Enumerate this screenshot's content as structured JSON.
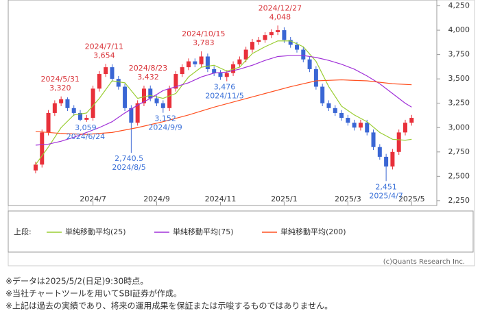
{
  "chart_data": {
    "type": "candlestick",
    "x": [
      5.2,
      5.4,
      5.6,
      5.8,
      6.0,
      6.2,
      6.4,
      6.6,
      6.8,
      7.0,
      7.2,
      7.4,
      7.6,
      7.8,
      8.0,
      8.2,
      8.4,
      8.6,
      8.8,
      9.0,
      9.2,
      9.4,
      9.6,
      9.8,
      10.0,
      10.2,
      10.4,
      10.6,
      10.8,
      11.0,
      11.2,
      11.4,
      11.6,
      11.8,
      12.0,
      12.2,
      12.4,
      12.6,
      12.8,
      13.0,
      13.2,
      13.4,
      13.6,
      13.8,
      14.0,
      14.2,
      14.4,
      14.6,
      14.8,
      15.0,
      15.2,
      15.4,
      15.6,
      15.8,
      16.0,
      16.2,
      16.4,
      16.6,
      16.8,
      17.0
    ],
    "open": [
      2560,
      2620,
      2950,
      3150,
      3250,
      3290,
      3200,
      3150,
      3080,
      3100,
      3400,
      3550,
      3620,
      3500,
      3420,
      3200,
      3050,
      3250,
      3400,
      3300,
      3250,
      3200,
      3400,
      3550,
      3620,
      3680,
      3650,
      3730,
      3600,
      3560,
      3520,
      3560,
      3650,
      3700,
      3800,
      3880,
      3900,
      3950,
      3980,
      4000,
      3900,
      3850,
      3800,
      3700,
      3600,
      3420,
      3250,
      3200,
      3150,
      3100,
      3050,
      3000,
      3050,
      2950,
      2800,
      2700,
      2600,
      2750,
      2950,
      3050
    ],
    "high": [
      2650,
      2980,
      3180,
      3280,
      3320,
      3310,
      3230,
      3180,
      3130,
      3430,
      3580,
      3654,
      3650,
      3530,
      3450,
      3230,
      3280,
      3430,
      3432,
      3330,
      3280,
      3430,
      3580,
      3650,
      3710,
      3710,
      3783,
      3760,
      3630,
      3590,
      3590,
      3680,
      3730,
      3830,
      3910,
      3930,
      3980,
      4010,
      4048,
      4030,
      3930,
      3880,
      3830,
      3730,
      3630,
      3450,
      3280,
      3230,
      3180,
      3130,
      3080,
      3080,
      3080,
      2980,
      2830,
      2730,
      2780,
      2980,
      3080,
      3130
    ],
    "low": [
      2530,
      2590,
      2920,
      3120,
      3220,
      3170,
      3120,
      3065,
      3059,
      3070,
      3370,
      3520,
      3470,
      3390,
      3170,
      2740.5,
      3020,
      3220,
      3270,
      3220,
      3152,
      3170,
      3370,
      3520,
      3590,
      3620,
      3620,
      3570,
      3530,
      3490,
      3476,
      3530,
      3620,
      3670,
      3770,
      3850,
      3870,
      3920,
      3950,
      3870,
      3820,
      3770,
      3670,
      3570,
      3390,
      3220,
      3170,
      3120,
      3070,
      3020,
      2970,
      2970,
      2920,
      2770,
      2670,
      2451,
      2570,
      2720,
      2920,
      3020
    ],
    "close": [
      2620,
      2950,
      3150,
      3250,
      3290,
      3200,
      3150,
      3080,
      3100,
      3400,
      3550,
      3620,
      3500,
      3420,
      3200,
      3050,
      3250,
      3400,
      3300,
      3250,
      3200,
      3400,
      3550,
      3620,
      3680,
      3650,
      3730,
      3600,
      3560,
      3520,
      3560,
      3650,
      3700,
      3800,
      3880,
      3900,
      3950,
      3980,
      4000,
      3900,
      3850,
      3800,
      3700,
      3600,
      3420,
      3250,
      3200,
      3150,
      3100,
      3050,
      3000,
      3050,
      2950,
      2800,
      2700,
      2600,
      2750,
      2950,
      3050,
      3100
    ],
    "up_color": "#e8303a",
    "down_color": "#3a66d4",
    "xlim": [
      4.34,
      17.79
    ],
    "xticks": [
      {
        "value": 7,
        "label": "2024/7"
      },
      {
        "value": 9,
        "label": "2024/9"
      },
      {
        "value": 11,
        "label": "2024/11"
      },
      {
        "value": 13,
        "label": "2025/1"
      },
      {
        "value": 15,
        "label": "2025/3"
      },
      {
        "value": 17,
        "label": "2025/5"
      }
    ],
    "ylim": [
      2200,
      4310
    ],
    "yticks": [
      {
        "value": 2250,
        "label": "2,250"
      },
      {
        "value": 2500,
        "label": "2,500"
      },
      {
        "value": 2750,
        "label": "2,750"
      },
      {
        "value": 3000,
        "label": "3,000"
      },
      {
        "value": 3250,
        "label": "3,250"
      },
      {
        "value": 3500,
        "label": "3,500"
      },
      {
        "value": 3750,
        "label": "3,750"
      },
      {
        "value": 4000,
        "label": "4,000"
      },
      {
        "value": 4250,
        "label": "4,250"
      }
    ],
    "legend_title": "上段:",
    "series": [
      {
        "name": "単純移動平均(25)",
        "color": "#9acd32",
        "x": [
          5.2,
          5.6,
          6.0,
          6.4,
          6.8,
          7.2,
          7.6,
          8.0,
          8.4,
          8.8,
          9.2,
          9.6,
          10.0,
          10.4,
          10.8,
          11.2,
          11.6,
          12.0,
          12.4,
          12.8,
          13.2,
          13.6,
          14.0,
          14.4,
          14.8,
          15.2,
          15.6,
          16.0,
          16.4,
          16.8,
          17.0
        ],
        "values": [
          2620,
          2800,
          3000,
          3130,
          3150,
          3300,
          3480,
          3460,
          3300,
          3330,
          3300,
          3350,
          3520,
          3620,
          3640,
          3580,
          3620,
          3760,
          3830,
          3890,
          3890,
          3830,
          3680,
          3420,
          3220,
          3130,
          3060,
          2950,
          2880,
          2870,
          2880
        ]
      },
      {
        "name": "単純移動平均(75)",
        "color": "#a030d8",
        "x": [
          5.2,
          5.6,
          6.0,
          6.4,
          6.8,
          7.2,
          7.6,
          8.0,
          8.4,
          8.8,
          9.2,
          9.6,
          10.0,
          10.4,
          10.8,
          11.2,
          11.6,
          12.0,
          12.4,
          12.8,
          13.2,
          13.6,
          14.0,
          14.4,
          14.8,
          15.2,
          15.6,
          16.0,
          16.4,
          16.8,
          17.0
        ],
        "values": [
          2820,
          2830,
          2860,
          2900,
          2950,
          3000,
          3060,
          3150,
          3230,
          3300,
          3380,
          3420,
          3460,
          3520,
          3560,
          3570,
          3600,
          3640,
          3690,
          3730,
          3740,
          3740,
          3720,
          3690,
          3650,
          3600,
          3530,
          3450,
          3350,
          3250,
          3210
        ]
      },
      {
        "name": "単純移動平均(200)",
        "color": "#ff5020",
        "x": [
          5.2,
          6.0,
          6.8,
          7.6,
          8.4,
          9.2,
          10.0,
          10.8,
          11.6,
          12.4,
          13.2,
          14.0,
          14.8,
          15.6,
          16.4,
          17.0
        ],
        "values": [
          2960,
          2940,
          2930,
          2950,
          3000,
          3060,
          3130,
          3210,
          3280,
          3350,
          3420,
          3480,
          3490,
          3480,
          3450,
          3440
        ]
      }
    ],
    "high_color": "#d9343a",
    "low_color": "#3a70d8",
    "annotations": [
      {
        "date": "2024/5/31",
        "text": "3,320",
        "value": 3320,
        "x": 5.97,
        "position": "above"
      },
      {
        "date": "2024/7/11",
        "text": "3,654",
        "value": 3654,
        "x": 7.35,
        "position": "above"
      },
      {
        "date": "2024/8/23",
        "text": "3,432",
        "value": 3432,
        "x": 8.73,
        "position": "above"
      },
      {
        "date": "2024/10/15",
        "text": "3,783",
        "value": 3783,
        "x": 10.47,
        "position": "above"
      },
      {
        "date": "2024/12/27",
        "text": "4,048",
        "value": 4048,
        "x": 12.87,
        "position": "above"
      },
      {
        "date": "2024/6/24",
        "text": "3,059",
        "value": 3059,
        "x": 6.77,
        "position": "below"
      },
      {
        "date": "2024/8/5",
        "text": "2,740.5",
        "value": 2740.5,
        "x": 8.13,
        "position": "below"
      },
      {
        "date": "2024/9/9",
        "text": "3,152",
        "value": 3152,
        "x": 9.27,
        "position": "below"
      },
      {
        "date": "2024/11/5",
        "text": "3,476",
        "value": 3476,
        "x": 11.13,
        "position": "below"
      },
      {
        "date": "2025/4/7",
        "text": "2,451",
        "value": 2451,
        "x": 16.2,
        "position": "below"
      }
    ],
    "copyright": "(c)Quants Research Inc."
  },
  "notes": [
    "※データは2025/5/2(日足)9:30時点。",
    "※当社チャートツールを用いてSBI証券が作成。",
    "※上記は過去の実績であり、将来の運用成果を保証または示唆するものではありません。"
  ]
}
